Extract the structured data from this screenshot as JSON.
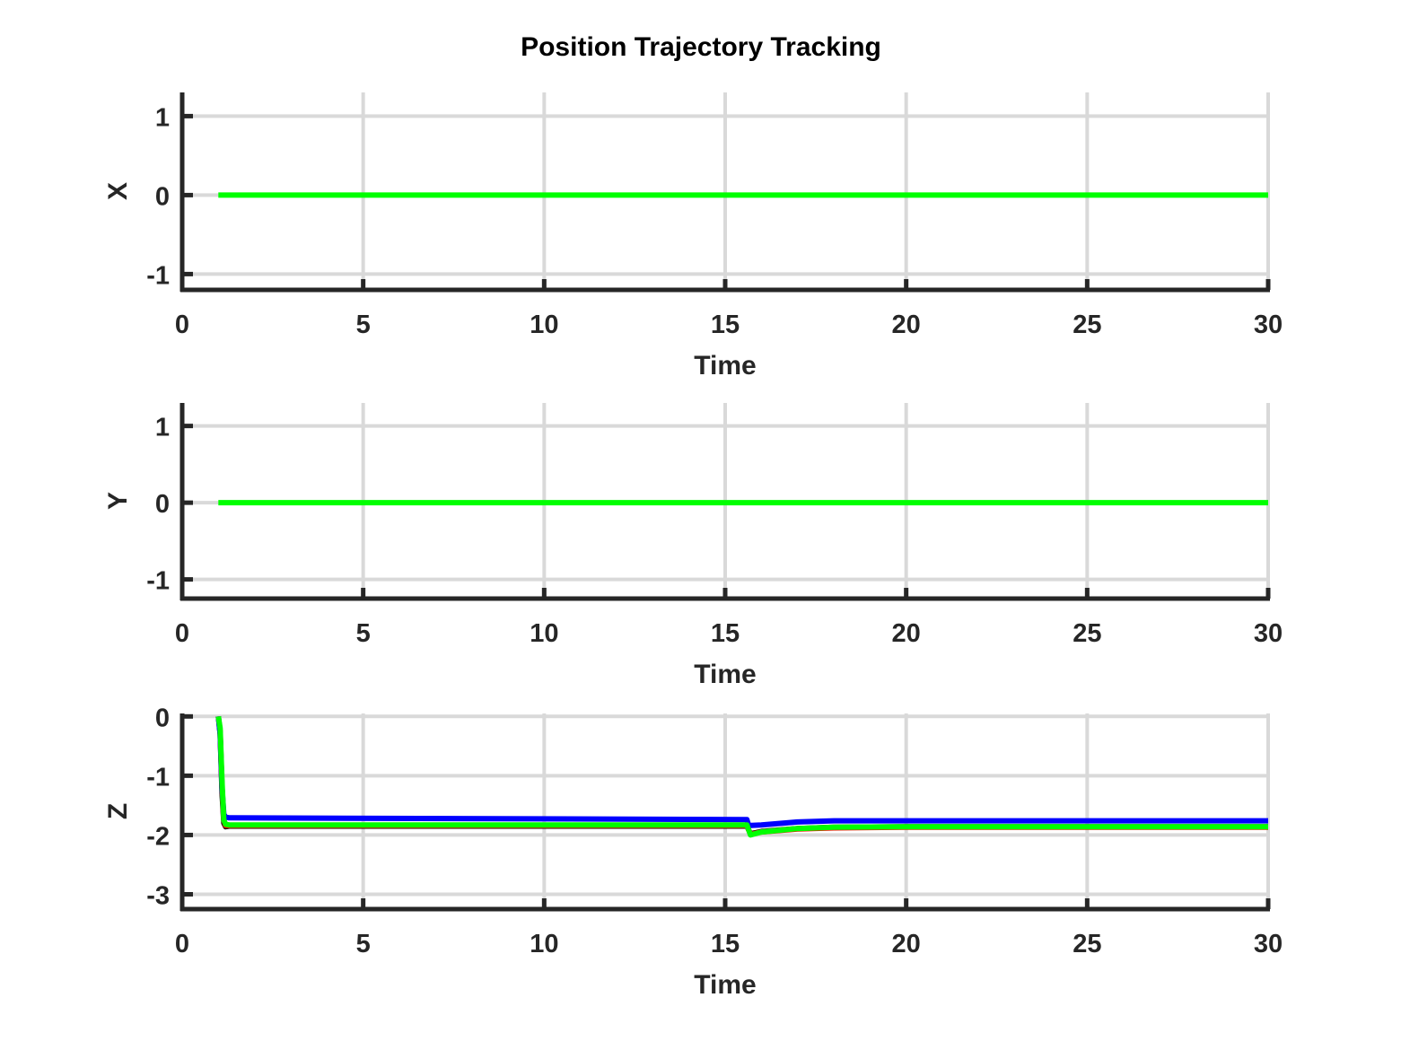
{
  "figure": {
    "title": "Position Trajectory Tracking"
  },
  "colors": {
    "axis": "#262626",
    "grid": "#d9d9d9",
    "background": "#ffffff",
    "series": [
      "#000000",
      "#ff0000",
      "#0000ff",
      "#00ff00"
    ]
  },
  "chart_data": [
    {
      "type": "line",
      "xlabel": "Time",
      "ylabel": "X",
      "xlim": [
        0,
        30
      ],
      "ylim": [
        -1.2,
        1.3
      ],
      "xticks": [
        0,
        5,
        10,
        15,
        20,
        25,
        30
      ],
      "yticks": [
        -1,
        0,
        1
      ],
      "xtick_labels": [
        "0",
        "5",
        "10",
        "15",
        "20",
        "25",
        "30"
      ],
      "ytick_labels": [
        "-1",
        "0",
        "1"
      ],
      "grid": true,
      "series": [
        {
          "color": "#00ff00",
          "x": [
            1,
            30
          ],
          "y": [
            0,
            0
          ]
        }
      ]
    },
    {
      "type": "line",
      "xlabel": "Time",
      "ylabel": "Y",
      "xlim": [
        0,
        30
      ],
      "ylim": [
        -1.25,
        1.3
      ],
      "xticks": [
        0,
        5,
        10,
        15,
        20,
        25,
        30
      ],
      "yticks": [
        -1,
        0,
        1
      ],
      "xtick_labels": [
        "0",
        "5",
        "10",
        "15",
        "20",
        "25",
        "30"
      ],
      "ytick_labels": [
        "-1",
        "0",
        "1"
      ],
      "grid": true,
      "series": [
        {
          "color": "#00ff00",
          "x": [
            1,
            30
          ],
          "y": [
            0,
            0
          ]
        }
      ]
    },
    {
      "type": "line",
      "xlabel": "Time",
      "ylabel": "Z",
      "xlim": [
        0,
        30
      ],
      "ylim": [
        -3.25,
        0.05
      ],
      "xticks": [
        0,
        5,
        10,
        15,
        20,
        25,
        30
      ],
      "yticks": [
        -3,
        -2,
        -1,
        0
      ],
      "xtick_labels": [
        "0",
        "5",
        "10",
        "15",
        "20",
        "25",
        "30"
      ],
      "ytick_labels": [
        "-3",
        "-2",
        "-1",
        "0"
      ],
      "grid": true,
      "series": [
        {
          "color": "#000000",
          "x": [
            1.0,
            1.05,
            1.1,
            1.15,
            1.2,
            1.3,
            15.6,
            15.7,
            16.0,
            17.0,
            18.0,
            20.0,
            30
          ],
          "y": [
            0.0,
            -0.3,
            -1.3,
            -1.8,
            -1.86,
            -1.85,
            -1.85,
            -1.98,
            -1.94,
            -1.89,
            -1.87,
            -1.86,
            -1.86
          ]
        },
        {
          "color": "#ff0000",
          "x": [
            1.0,
            1.05,
            1.1,
            1.15,
            1.2,
            1.3,
            15.6,
            15.7,
            16.0,
            17.0,
            18.0,
            20.0,
            30
          ],
          "y": [
            0.0,
            -0.25,
            -1.2,
            -1.75,
            -1.84,
            -1.84,
            -1.84,
            -1.99,
            -1.95,
            -1.9,
            -1.88,
            -1.87,
            -1.87
          ]
        },
        {
          "color": "#0000ff",
          "x": [
            1.0,
            1.05,
            1.1,
            1.15,
            1.2,
            1.3,
            15.6,
            15.65,
            16.0,
            17.0,
            18.0,
            20.0,
            30
          ],
          "y": [
            0.0,
            -0.3,
            -1.2,
            -1.65,
            -1.7,
            -1.71,
            -1.74,
            -1.84,
            -1.83,
            -1.78,
            -1.76,
            -1.76,
            -1.76
          ]
        },
        {
          "color": "#00ff00",
          "x": [
            1.0,
            1.05,
            1.1,
            1.15,
            1.2,
            1.3,
            15.6,
            15.7,
            16.0,
            17.0,
            18.0,
            20.0,
            30
          ],
          "y": [
            0.0,
            -0.2,
            -1.1,
            -1.75,
            -1.82,
            -1.83,
            -1.83,
            -2.0,
            -1.95,
            -1.89,
            -1.87,
            -1.86,
            -1.86
          ]
        }
      ]
    }
  ]
}
